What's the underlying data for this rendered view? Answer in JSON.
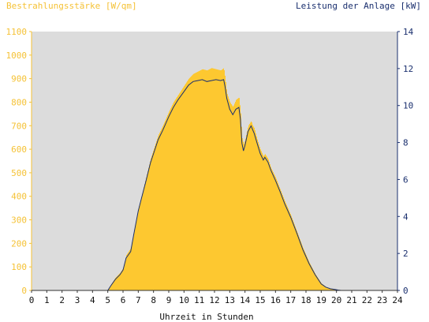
{
  "chart_data": {
    "type": "area",
    "title_left": "Bestrahlungsstärke [W/qm]",
    "title_right": "Leistung der Anlage [kW]",
    "xlabel": "Uhrzeit in Stunden",
    "x_ticks": [
      "0",
      "1",
      "2",
      "3",
      "4",
      "5",
      "6",
      "7",
      "8",
      "9",
      "10",
      "11",
      "12",
      "13",
      "14",
      "15",
      "16",
      "17",
      "18",
      "19",
      "20",
      "21",
      "22",
      "23",
      "24"
    ],
    "xlim": [
      0,
      24
    ],
    "y_left": {
      "ylim": [
        0,
        1100
      ],
      "ticks": [
        "0",
        "100",
        "200",
        "300",
        "400",
        "500",
        "600",
        "700",
        "800",
        "900",
        "1000",
        "1100"
      ]
    },
    "y_right": {
      "ylim": [
        0,
        14
      ],
      "ticks": [
        "0",
        "2",
        "4",
        "6",
        "8",
        "10",
        "12",
        "14"
      ]
    },
    "colors": {
      "irradiance": "#fdc830",
      "power": "#1a2f6e",
      "plot_bg": "#dcdcdc",
      "left_axis_text": "#f5c236",
      "right_axis_text": "#1a2f6e"
    },
    "series": [
      {
        "axis": "left",
        "type": "area",
        "x": [
          0,
          5.0,
          5.2,
          5.5,
          5.8,
          6.0,
          6.2,
          6.5,
          6.7,
          7.0,
          7.2,
          7.5,
          7.8,
          8.0,
          8.3,
          8.6,
          9.0,
          9.3,
          9.6,
          10.0,
          10.3,
          10.6,
          10.9,
          11.2,
          11.5,
          11.8,
          12.1,
          12.4,
          12.6,
          12.7,
          12.8,
          13.0,
          13.2,
          13.4,
          13.6,
          13.7,
          13.8,
          13.9,
          14.0,
          14.2,
          14.4,
          14.5,
          14.6,
          14.8,
          15.0,
          15.2,
          15.3,
          15.5,
          15.7,
          16.0,
          16.3,
          16.6,
          17.0,
          17.4,
          17.8,
          18.2,
          18.6,
          19.0,
          19.3,
          19.6,
          19.9,
          20.1,
          20.3,
          24
        ],
        "y": [
          0,
          0,
          25,
          55,
          75,
          95,
          150,
          180,
          250,
          350,
          400,
          480,
          560,
          600,
          660,
          700,
          760,
          800,
          830,
          870,
          900,
          920,
          930,
          940,
          935,
          945,
          940,
          935,
          945,
          900,
          840,
          800,
          780,
          810,
          820,
          760,
          650,
          620,
          640,
          700,
          720,
          700,
          690,
          640,
          600,
          570,
          580,
          560,
          520,
          480,
          430,
          380,
          320,
          250,
          180,
          120,
          70,
          30,
          15,
          8,
          5,
          2,
          0,
          0
        ]
      },
      {
        "axis": "right",
        "type": "line",
        "x": [
          0,
          5.0,
          5.2,
          5.5,
          5.8,
          6.0,
          6.2,
          6.5,
          6.7,
          7.0,
          7.2,
          7.5,
          7.8,
          8.0,
          8.3,
          8.6,
          9.0,
          9.3,
          9.6,
          10.0,
          10.3,
          10.6,
          10.9,
          11.2,
          11.5,
          11.8,
          12.1,
          12.4,
          12.6,
          12.7,
          12.8,
          13.0,
          13.2,
          13.4,
          13.6,
          13.7,
          13.8,
          13.9,
          14.0,
          14.2,
          14.4,
          14.5,
          14.6,
          14.8,
          15.0,
          15.2,
          15.3,
          15.5,
          15.7,
          16.0,
          16.3,
          16.6,
          17.0,
          17.4,
          17.8,
          18.2,
          18.6,
          19.0,
          19.3,
          19.6,
          19.9,
          20.1,
          20.3,
          24
        ],
        "y": [
          0,
          0,
          0.25,
          0.6,
          0.85,
          1.1,
          1.75,
          2.1,
          3.0,
          4.3,
          4.95,
          5.9,
          6.9,
          7.4,
          8.15,
          8.65,
          9.4,
          9.9,
          10.3,
          10.75,
          11.1,
          11.3,
          11.35,
          11.4,
          11.3,
          11.35,
          11.4,
          11.35,
          11.4,
          11.0,
          10.4,
          9.8,
          9.5,
          9.8,
          9.9,
          9.25,
          7.95,
          7.55,
          7.85,
          8.6,
          8.9,
          8.7,
          8.5,
          7.95,
          7.4,
          7.05,
          7.2,
          6.95,
          6.5,
          5.95,
          5.35,
          4.7,
          3.95,
          3.1,
          2.2,
          1.45,
          0.85,
          0.35,
          0.18,
          0.09,
          0.05,
          0.02,
          0,
          0
        ]
      }
    ]
  }
}
